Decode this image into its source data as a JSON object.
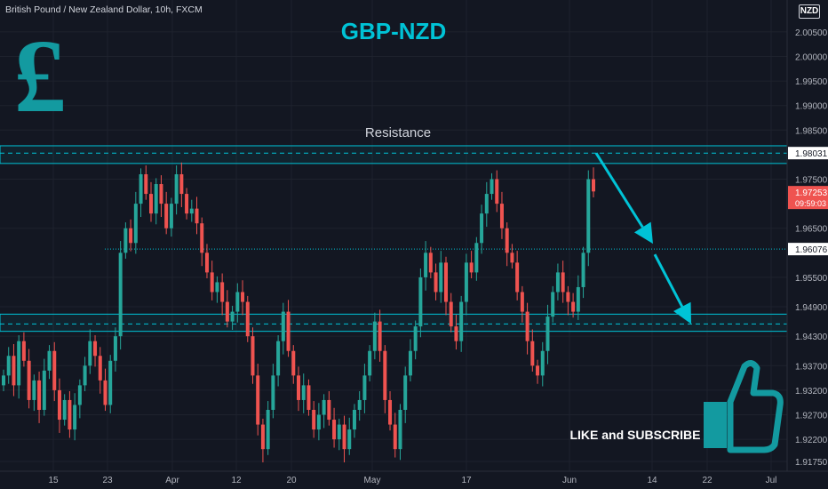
{
  "header": {
    "symbol_info": "British Pound / New Zealand Dollar, 10h, FXCM",
    "title": "GBP-NZD",
    "currency_badge": "NZD"
  },
  "annotations": {
    "resistance": "Resistance",
    "cta": "LIKE and SUBSCRIBE",
    "pound_symbol": "£"
  },
  "colors": {
    "background": "#131722",
    "up": "#26a69a",
    "down": "#ef5350",
    "accent": "#00c3d6",
    "grid": "#1e222d",
    "axis_text": "#b2b5be"
  },
  "price_labels": {
    "resistance_level": "1.98031",
    "current_price": "1.97253",
    "countdown": "09:59:03",
    "mid_level": "1.96076"
  },
  "chart_data": {
    "type": "candlestick",
    "title": "GBP-NZD",
    "ylim": [
      1.9155,
      2.0115
    ],
    "y_ticks": [
      "2.00500",
      "2.00000",
      "1.99500",
      "1.99000",
      "1.98500",
      "1.97500",
      "1.96500",
      "1.95500",
      "1.94900",
      "1.94300",
      "1.93700",
      "1.93200",
      "1.92700",
      "1.92200",
      "1.91750"
    ],
    "x_ticks": [
      "15",
      "23",
      "Apr",
      "12",
      "20",
      "May",
      "17",
      "Jun",
      "14",
      "22",
      "Jul"
    ],
    "grid": true,
    "levels": {
      "resistance_zone": [
        1.9782,
        1.9818
      ],
      "resistance_line": 1.98031,
      "support_zone": [
        1.944,
        1.9475
      ],
      "support_line": 1.9455,
      "mid_line": 1.96076,
      "current_price": 1.97253
    },
    "arrows": [
      {
        "from": [
          1.9803,
          "Jun +2"
        ],
        "to": [
          1.961,
          "Jun +14"
        ]
      },
      {
        "from": [
          1.961,
          "Jun +14"
        ],
        "to": [
          1.9455,
          "Jun +22"
        ]
      }
    ],
    "ohlc_closes": [
      1.935,
      1.939,
      1.933,
      1.942,
      1.938,
      1.93,
      1.934,
      1.928,
      1.936,
      1.94,
      1.932,
      1.926,
      1.93,
      1.924,
      1.929,
      1.933,
      1.937,
      1.942,
      1.939,
      1.934,
      1.929,
      1.938,
      1.943,
      1.96,
      1.965,
      1.962,
      1.97,
      1.976,
      1.972,
      1.968,
      1.974,
      1.97,
      1.965,
      1.97,
      1.976,
      1.972,
      1.968,
      1.969,
      1.966,
      1.96,
      1.956,
      1.952,
      1.954,
      1.95,
      1.946,
      1.948,
      1.952,
      1.95,
      1.943,
      1.935,
      1.925,
      1.92,
      1.928,
      1.935,
      1.942,
      1.948,
      1.94,
      1.935,
      1.93,
      1.933,
      1.928,
      1.924,
      1.927,
      1.93,
      1.926,
      1.922,
      1.925,
      1.92,
      1.924,
      1.928,
      1.93,
      1.935,
      1.94,
      1.946,
      1.94,
      1.93,
      1.925,
      1.92,
      1.928,
      1.935,
      1.94,
      1.945,
      1.955,
      1.96,
      1.956,
      1.952,
      1.958,
      1.95,
      1.945,
      1.942,
      1.95,
      1.958,
      1.956,
      1.962,
      1.968,
      1.972,
      1.975,
      1.97,
      1.965,
      1.96,
      1.958,
      1.952,
      1.948,
      1.942,
      1.937,
      1.935,
      1.94,
      1.947,
      1.952,
      1.956,
      1.952,
      1.95,
      1.948,
      1.953,
      1.96,
      1.975,
      1.9725
    ]
  }
}
